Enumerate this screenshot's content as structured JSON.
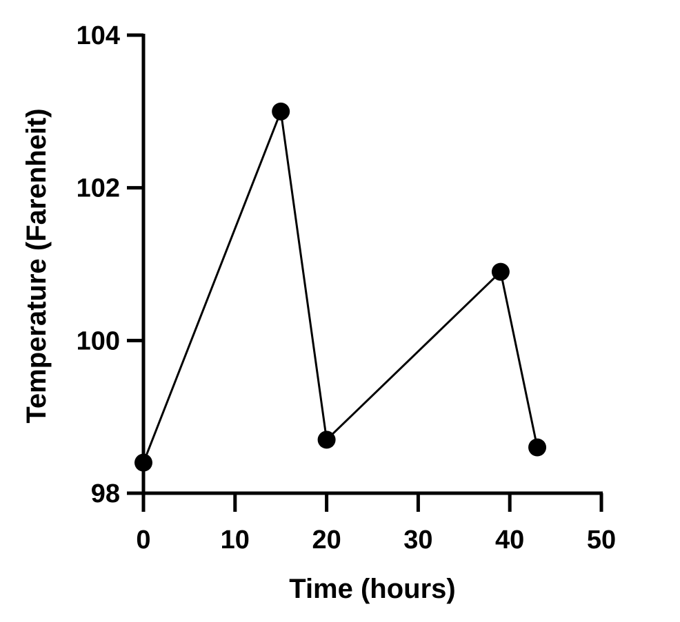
{
  "chart_data": {
    "type": "line",
    "title": "",
    "xlabel": "Time (hours)",
    "ylabel": "Temperature (Farenheit)",
    "xlim": [
      0,
      50
    ],
    "ylim": [
      98,
      104
    ],
    "x_ticks": [
      0,
      10,
      20,
      30,
      40,
      50
    ],
    "y_ticks": [
      98,
      100,
      102,
      104
    ],
    "grid": false,
    "legend": "none",
    "color": "#000000",
    "series": [
      {
        "x": [
          0,
          15,
          20,
          39,
          43
        ],
        "y": [
          98.4,
          103.0,
          98.7,
          100.9,
          98.6
        ]
      }
    ]
  }
}
